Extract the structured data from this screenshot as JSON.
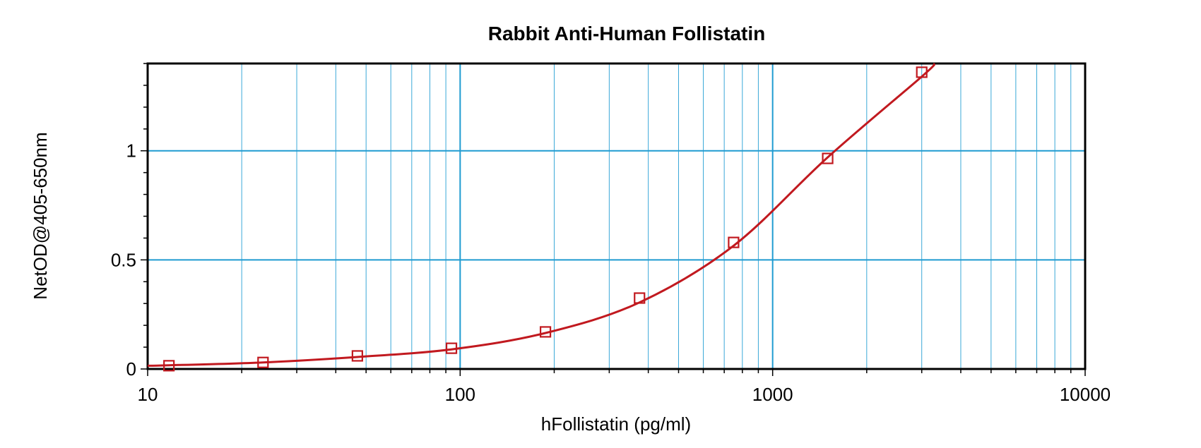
{
  "chart_data": {
    "type": "scatter",
    "title": "Rabbit Anti-Human Follistatin",
    "xlabel": "hFollistatin (pg/ml)",
    "ylabel": "NetOD@405-650nm",
    "x_scale": "log",
    "xlim": [
      10,
      10000
    ],
    "ylim": [
      0,
      1.4
    ],
    "x_ticks": [
      10,
      100,
      1000,
      10000
    ],
    "x_tick_labels": [
      "10",
      "100",
      "1000",
      "10000"
    ],
    "y_ticks": [
      0,
      0.5,
      1
    ],
    "y_tick_labels": [
      "0",
      "0.5",
      "1"
    ],
    "grid": true,
    "legend": "none",
    "series": [
      {
        "marker": "square",
        "color": "#c1191f",
        "x": [
          11.7,
          23.4,
          46.9,
          93.8,
          187.5,
          375,
          750,
          1500,
          3000
        ],
        "y": [
          0.015,
          0.03,
          0.06,
          0.095,
          0.17,
          0.325,
          0.58,
          0.965,
          1.36
        ]
      }
    ],
    "fit_curve": {
      "color": "#c1191f",
      "x": [
        10,
        11.7,
        23.4,
        46.9,
        93.8,
        187.5,
        375,
        750,
        1500,
        3000,
        3300
      ],
      "y": [
        0.015,
        0.017,
        0.03,
        0.055,
        0.09,
        0.165,
        0.305,
        0.565,
        0.97,
        1.34,
        1.4
      ]
    }
  }
}
